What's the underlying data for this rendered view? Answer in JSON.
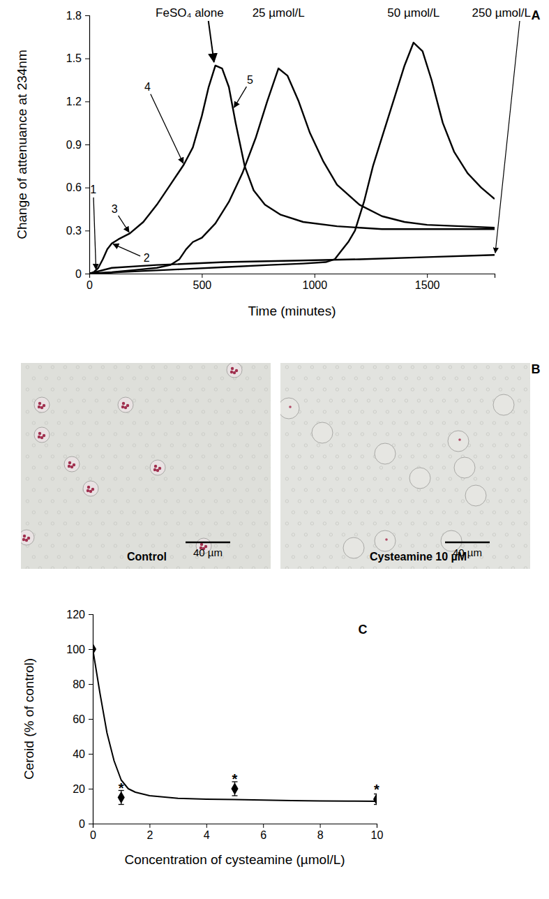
{
  "chart_data": [
    {
      "type": "line",
      "panel_label": "A",
      "x_label": "Time (minutes)",
      "y_label": "Change of attenuance at 234nm",
      "xlim": [
        0,
        1800
      ],
      "ylim": [
        0,
        1.8
      ],
      "xticks": [
        0,
        500,
        1000,
        1500
      ],
      "yticks": [
        0,
        0.3,
        0.6,
        0.9,
        1.2,
        1.5,
        1.8
      ],
      "series": [
        {
          "name": "FeSO₄ alone",
          "color": "#000000",
          "x": [
            0,
            20,
            40,
            60,
            80,
            100,
            130,
            180,
            240,
            300,
            360,
            420,
            460,
            500,
            530,
            560,
            590,
            620,
            650,
            690,
            730,
            780,
            850,
            950,
            1100,
            1300,
            1800
          ],
          "values": [
            0,
            0.01,
            0.04,
            0.1,
            0.17,
            0.21,
            0.24,
            0.28,
            0.36,
            0.48,
            0.62,
            0.76,
            0.88,
            1.1,
            1.3,
            1.45,
            1.43,
            1.3,
            1.05,
            0.75,
            0.58,
            0.48,
            0.41,
            0.36,
            0.33,
            0.31,
            0.31
          ]
        },
        {
          "name": "25 µmol/L",
          "color": "#000000",
          "x": [
            0,
            100,
            200,
            300,
            360,
            400,
            430,
            460,
            500,
            560,
            620,
            680,
            740,
            790,
            840,
            880,
            930,
            980,
            1040,
            1100,
            1200,
            1300,
            1400,
            1500,
            1650,
            1800
          ],
          "values": [
            0,
            0.01,
            0.025,
            0.04,
            0.06,
            0.1,
            0.17,
            0.22,
            0.25,
            0.35,
            0.5,
            0.7,
            0.95,
            1.2,
            1.43,
            1.38,
            1.2,
            0.98,
            0.78,
            0.62,
            0.48,
            0.4,
            0.36,
            0.34,
            0.33,
            0.32
          ]
        },
        {
          "name": "50 µmol/L",
          "color": "#000000",
          "x": [
            0,
            200,
            400,
            600,
            800,
            950,
            1050,
            1090,
            1120,
            1150,
            1180,
            1220,
            1260,
            1300,
            1350,
            1400,
            1440,
            1480,
            1520,
            1570,
            1620,
            1680,
            1740,
            1800
          ],
          "values": [
            0,
            0.015,
            0.03,
            0.045,
            0.06,
            0.07,
            0.08,
            0.1,
            0.16,
            0.22,
            0.3,
            0.5,
            0.75,
            0.95,
            1.2,
            1.45,
            1.61,
            1.55,
            1.35,
            1.05,
            0.85,
            0.7,
            0.6,
            0.52
          ]
        },
        {
          "name": "250 µmol/L",
          "color": "#000000",
          "x": [
            0,
            100,
            300,
            600,
            900,
            1200,
            1500,
            1800
          ],
          "values": [
            0,
            0.04,
            0.06,
            0.08,
            0.09,
            0.1,
            0.115,
            0.13
          ]
        }
      ],
      "annotations": [
        {
          "text": "1",
          "x": 30,
          "y": 0.02
        },
        {
          "text": "2",
          "x": 100,
          "y": 0.21
        },
        {
          "text": "3",
          "x": 180,
          "y": 0.28
        },
        {
          "text": "4",
          "x": 420,
          "y": 0.76
        },
        {
          "text": "5",
          "x": 640,
          "y": 1.15
        }
      ]
    },
    {
      "type": "image",
      "panel_label": "B",
      "images": [
        {
          "label": "Control",
          "scale_bar": "40 µm"
        },
        {
          "label": "Cysteamine 10 µM",
          "scale_bar": "40 µm"
        }
      ]
    },
    {
      "type": "scatter",
      "panel_label": "C",
      "x_label": "Concentration of cysteamine (µmol/L)",
      "y_label": "Ceroid (% of control)",
      "xlim": [
        0,
        10
      ],
      "ylim": [
        0,
        120
      ],
      "xticks": [
        0,
        2,
        4,
        6,
        8,
        10
      ],
      "yticks": [
        0,
        20,
        40,
        60,
        80,
        100,
        120
      ],
      "series": [
        {
          "type": "scatter",
          "marker": "diamond",
          "color": "#000000",
          "x": [
            0,
            1,
            5,
            10
          ],
          "values": [
            100,
            15,
            20,
            14
          ],
          "errors": [
            0,
            4,
            4,
            3
          ]
        },
        {
          "type": "line",
          "color": "#000000",
          "x": [
            0,
            0.25,
            0.5,
            0.75,
            1,
            1.25,
            1.5,
            2,
            3,
            4,
            5,
            6,
            7,
            8,
            9,
            10
          ],
          "values": [
            100,
            75,
            52,
            36,
            25,
            20,
            18,
            16,
            14.5,
            14,
            13.8,
            13.5,
            13.2,
            13,
            12.9,
            12.8
          ]
        }
      ],
      "annotations": [
        {
          "text": "*",
          "x": 1,
          "y": 21
        },
        {
          "text": "*",
          "x": 5,
          "y": 26
        },
        {
          "text": "*",
          "x": 10,
          "y": 20
        }
      ]
    }
  ]
}
